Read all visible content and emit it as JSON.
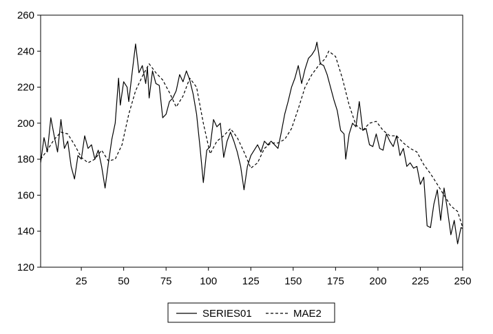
{
  "chart_data": {
    "type": "line",
    "title": "",
    "xlabel": "",
    "ylabel": "",
    "xlim": [
      1,
      250
    ],
    "ylim": [
      120,
      260
    ],
    "x_ticks": [
      25,
      50,
      75,
      100,
      125,
      150,
      175,
      200,
      225,
      250
    ],
    "y_ticks": [
      120,
      140,
      160,
      180,
      200,
      220,
      240,
      260
    ],
    "grid": false,
    "legend_position": "bottom-center",
    "series": [
      {
        "name": "SERIES01",
        "style": "solid",
        "color": "#000000",
        "points": [
          [
            1,
            178
          ],
          [
            3,
            192
          ],
          [
            5,
            184
          ],
          [
            7,
            203
          ],
          [
            9,
            193
          ],
          [
            11,
            184
          ],
          [
            13,
            202
          ],
          [
            15,
            186
          ],
          [
            17,
            190
          ],
          [
            19,
            176
          ],
          [
            21,
            169
          ],
          [
            23,
            182
          ],
          [
            25,
            180
          ],
          [
            27,
            193
          ],
          [
            29,
            186
          ],
          [
            31,
            188
          ],
          [
            33,
            180
          ],
          [
            35,
            185
          ],
          [
            37,
            176
          ],
          [
            39,
            164
          ],
          [
            41,
            178
          ],
          [
            43,
            191
          ],
          [
            45,
            200
          ],
          [
            47,
            225
          ],
          [
            48,
            210
          ],
          [
            50,
            223
          ],
          [
            52,
            220
          ],
          [
            53,
            212
          ],
          [
            55,
            228
          ],
          [
            57,
            244
          ],
          [
            59,
            228
          ],
          [
            61,
            232
          ],
          [
            63,
            222
          ],
          [
            64,
            231
          ],
          [
            65,
            214
          ],
          [
            67,
            229
          ],
          [
            69,
            222
          ],
          [
            71,
            221
          ],
          [
            73,
            203
          ],
          [
            75,
            205
          ],
          [
            77,
            212
          ],
          [
            79,
            214
          ],
          [
            81,
            218
          ],
          [
            83,
            227
          ],
          [
            85,
            223
          ],
          [
            87,
            229
          ],
          [
            89,
            224
          ],
          [
            91,
            216
          ],
          [
            93,
            205
          ],
          [
            95,
            187
          ],
          [
            97,
            167
          ],
          [
            99,
            185
          ],
          [
            101,
            187
          ],
          [
            103,
            202
          ],
          [
            105,
            198
          ],
          [
            107,
            200
          ],
          [
            109,
            181
          ],
          [
            111,
            190
          ],
          [
            113,
            195
          ],
          [
            115,
            190
          ],
          [
            117,
            184
          ],
          [
            119,
            176
          ],
          [
            121,
            163
          ],
          [
            123,
            176
          ],
          [
            125,
            182
          ],
          [
            127,
            185
          ],
          [
            129,
            188
          ],
          [
            131,
            184
          ],
          [
            133,
            190
          ],
          [
            135,
            188
          ],
          [
            137,
            190
          ],
          [
            139,
            188
          ],
          [
            141,
            186
          ],
          [
            143,
            195
          ],
          [
            145,
            205
          ],
          [
            147,
            212
          ],
          [
            149,
            220
          ],
          [
            151,
            225
          ],
          [
            153,
            232
          ],
          [
            155,
            222
          ],
          [
            157,
            230
          ],
          [
            159,
            236
          ],
          [
            161,
            238
          ],
          [
            163,
            241
          ],
          [
            164,
            245
          ],
          [
            166,
            233
          ],
          [
            168,
            232
          ],
          [
            170,
            227
          ],
          [
            172,
            220
          ],
          [
            174,
            213
          ],
          [
            176,
            207
          ],
          [
            178,
            196
          ],
          [
            180,
            194
          ],
          [
            181,
            180
          ],
          [
            183,
            194
          ],
          [
            185,
            200
          ],
          [
            187,
            198
          ],
          [
            189,
            212
          ],
          [
            191,
            196
          ],
          [
            193,
            197
          ],
          [
            195,
            188
          ],
          [
            197,
            187
          ],
          [
            199,
            194
          ],
          [
            201,
            186
          ],
          [
            203,
            185
          ],
          [
            205,
            194
          ],
          [
            207,
            190
          ],
          [
            209,
            187
          ],
          [
            211,
            193
          ],
          [
            213,
            182
          ],
          [
            215,
            186
          ],
          [
            217,
            176
          ],
          [
            219,
            178
          ],
          [
            221,
            175
          ],
          [
            223,
            176
          ],
          [
            225,
            166
          ],
          [
            227,
            170
          ],
          [
            229,
            143
          ],
          [
            231,
            142
          ],
          [
            233,
            155
          ],
          [
            235,
            163
          ],
          [
            237,
            146
          ],
          [
            239,
            164
          ],
          [
            241,
            152
          ],
          [
            243,
            138
          ],
          [
            245,
            146
          ],
          [
            247,
            133
          ],
          [
            249,
            142
          ],
          [
            251,
            141
          ],
          [
            253,
            144
          ]
        ]
      },
      {
        "name": "MAE2",
        "style": "dashed",
        "color": "#000000",
        "points": [
          [
            1,
            180
          ],
          [
            5,
            185
          ],
          [
            9,
            191
          ],
          [
            13,
            195
          ],
          [
            17,
            194
          ],
          [
            21,
            188
          ],
          [
            25,
            181
          ],
          [
            29,
            178
          ],
          [
            33,
            180
          ],
          [
            37,
            185
          ],
          [
            41,
            179
          ],
          [
            45,
            180
          ],
          [
            49,
            188
          ],
          [
            53,
            205
          ],
          [
            57,
            218
          ],
          [
            61,
            226
          ],
          [
            65,
            233
          ],
          [
            69,
            228
          ],
          [
            73,
            224
          ],
          [
            77,
            217
          ],
          [
            81,
            209
          ],
          [
            85,
            215
          ],
          [
            89,
            225
          ],
          [
            93,
            220
          ],
          [
            97,
            200
          ],
          [
            101,
            183
          ],
          [
            105,
            190
          ],
          [
            109,
            193
          ],
          [
            113,
            197
          ],
          [
            117,
            192
          ],
          [
            121,
            184
          ],
          [
            125,
            175
          ],
          [
            129,
            178
          ],
          [
            133,
            186
          ],
          [
            137,
            189
          ],
          [
            141,
            189
          ],
          [
            145,
            191
          ],
          [
            149,
            197
          ],
          [
            153,
            208
          ],
          [
            157,
            220
          ],
          [
            161,
            227
          ],
          [
            165,
            232
          ],
          [
            169,
            236
          ],
          [
            171,
            240
          ],
          [
            175,
            237
          ],
          [
            179,
            225
          ],
          [
            183,
            210
          ],
          [
            187,
            199
          ],
          [
            191,
            196
          ],
          [
            195,
            200
          ],
          [
            199,
            201
          ],
          [
            203,
            196
          ],
          [
            207,
            193
          ],
          [
            211,
            193
          ],
          [
            215,
            189
          ],
          [
            219,
            186
          ],
          [
            223,
            184
          ],
          [
            227,
            177
          ],
          [
            231,
            172
          ],
          [
            235,
            166
          ],
          [
            239,
            160
          ],
          [
            243,
            154
          ],
          [
            247,
            151
          ],
          [
            251,
            139
          ]
        ]
      }
    ]
  }
}
